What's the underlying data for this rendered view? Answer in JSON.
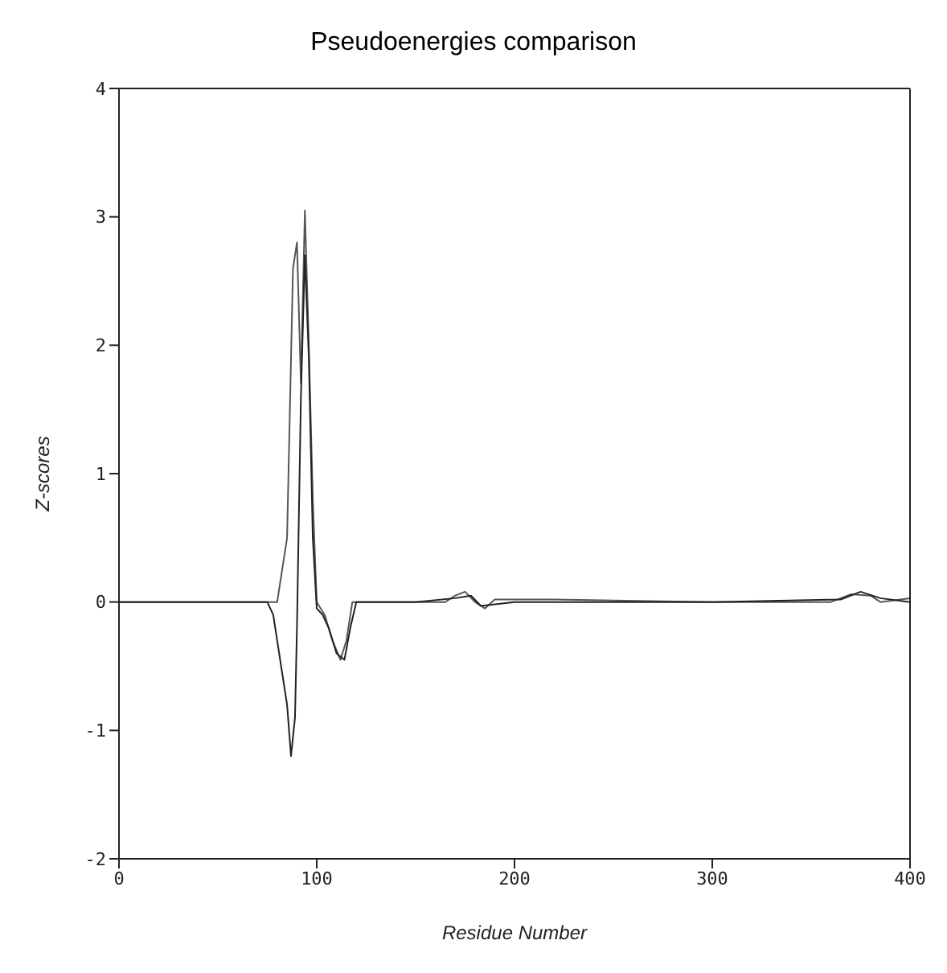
{
  "chart_data": {
    "type": "line",
    "title": "Pseudoenergies comparison",
    "xlabel": "Residue Number",
    "ylabel": "Z-scores",
    "xlim": [
      0,
      400
    ],
    "xticks": [
      0,
      100,
      200,
      300,
      400
    ],
    "ylim": [
      -2,
      4
    ],
    "yticks": [
      -2,
      -1,
      0,
      1,
      2,
      3,
      4
    ],
    "legend": false,
    "marker": "none",
    "line_style": "solid",
    "series": [
      {
        "color": "#555555",
        "x": [
          0,
          20,
          40,
          60,
          75,
          80,
          85,
          88,
          90,
          92,
          94,
          96,
          98,
          100,
          104,
          108,
          112,
          115,
          118,
          130,
          150,
          165,
          170,
          175,
          180,
          185,
          190,
          220,
          300,
          360,
          370,
          380,
          385,
          400
        ],
        "values": [
          0,
          0,
          0,
          0,
          0,
          0,
          0.5,
          2.6,
          2.8,
          1.7,
          3.05,
          2.0,
          0.8,
          0,
          -0.1,
          -0.3,
          -0.45,
          -0.3,
          0,
          0,
          0,
          0,
          0.05,
          0.08,
          0,
          -0.05,
          0.02,
          0.02,
          0,
          0,
          0.06,
          0.05,
          0,
          0.03
        ]
      },
      {
        "color": "#222222",
        "x": [
          0,
          20,
          40,
          60,
          75,
          78,
          82,
          85,
          87,
          89,
          90,
          92,
          94,
          96,
          98,
          100,
          103,
          106,
          110,
          114,
          117,
          120,
          150,
          170,
          178,
          183,
          200,
          300,
          365,
          375,
          385,
          400
        ],
        "values": [
          0,
          0,
          0,
          0,
          0,
          -0.1,
          -0.5,
          -0.8,
          -1.2,
          -0.9,
          -0.2,
          1.6,
          2.7,
          1.9,
          0.5,
          -0.05,
          -0.1,
          -0.2,
          -0.4,
          -0.45,
          -0.2,
          0,
          0,
          0.03,
          0.05,
          -0.03,
          0,
          0,
          0.02,
          0.08,
          0.03,
          0
        ]
      }
    ]
  }
}
